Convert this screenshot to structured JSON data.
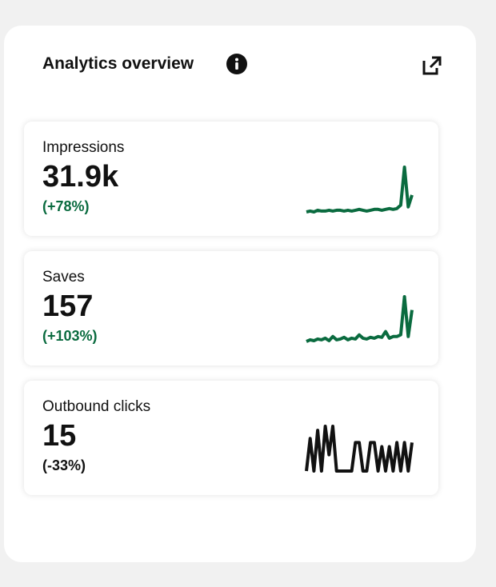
{
  "header": {
    "title": "Analytics overview"
  },
  "metrics": [
    {
      "label": "Impressions",
      "value": "31.9k",
      "change": "(+78%)",
      "color": "#0a6b3f",
      "sparkline": [
        2,
        3,
        2,
        4,
        3,
        3,
        4,
        3,
        4,
        4,
        3,
        4,
        3,
        4,
        5,
        4,
        3,
        4,
        5,
        5,
        4,
        5,
        6,
        5,
        6,
        10,
        55,
        8,
        22
      ]
    },
    {
      "label": "Saves",
      "value": "157",
      "change": "(+103%)",
      "color": "#0a6b3f",
      "sparkline": [
        2,
        4,
        3,
        5,
        4,
        6,
        3,
        8,
        4,
        5,
        7,
        4,
        6,
        5,
        10,
        6,
        5,
        7,
        6,
        8,
        7,
        14,
        6,
        8,
        8,
        10,
        56,
        8,
        40
      ]
    },
    {
      "label": "Outbound clicks",
      "value": "15",
      "change": "(-33%)",
      "color": "#111111",
      "sparkline": [
        0,
        40,
        0,
        50,
        0,
        55,
        20,
        55,
        0,
        0,
        0,
        0,
        0,
        35,
        35,
        0,
        0,
        35,
        35,
        0,
        30,
        0,
        30,
        0,
        35,
        0,
        35,
        0,
        35
      ]
    }
  ]
}
